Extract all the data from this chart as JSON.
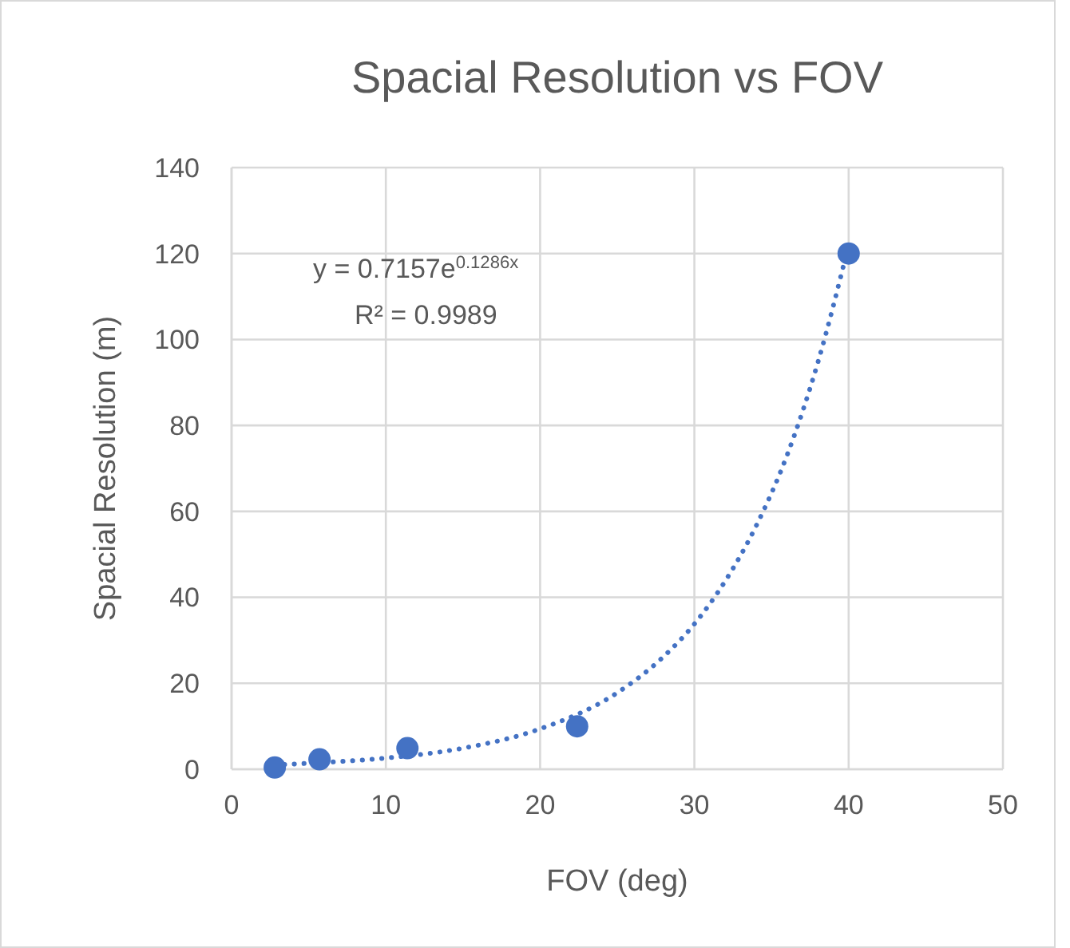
{
  "chart_data": {
    "type": "scatter",
    "title": "Spacial Resolution vs FOV",
    "xlabel": "FOV (deg)",
    "ylabel": "Spacial Resolution (m)",
    "annotations": [
      "y = 0.7157e$^{0.1286x}$",
      "R² = 0.9989"
    ],
    "series": [
      {
        "color": "#4472c4",
        "marker": "circle",
        "x": [
          2.8,
          5.7,
          11.4,
          22.4,
          40
        ],
        "values": [
          0.4,
          2.3,
          4.9,
          10,
          120
        ]
      },
      {
        "type": "line",
        "color": "#4472c4",
        "line_style": "dotted",
        "marker": "none",
        "x": [
          2.8,
          5,
          10,
          15,
          20,
          25,
          28,
          30,
          32,
          34,
          36,
          38,
          40
        ],
        "values": [
          1.0,
          1.4,
          2.6,
          4.9,
          9.4,
          17.8,
          26.2,
          33.8,
          43.8,
          56.6,
          73,
          94.6,
          122
        ]
      }
    ],
    "xlim": [
      0,
      50
    ],
    "xticks": [
      0,
      10,
      20,
      30,
      40,
      50
    ],
    "ylim": [
      0,
      140
    ],
    "yticks": [
      0,
      20,
      40,
      60,
      80,
      100,
      120,
      140
    ],
    "grid": true
  }
}
